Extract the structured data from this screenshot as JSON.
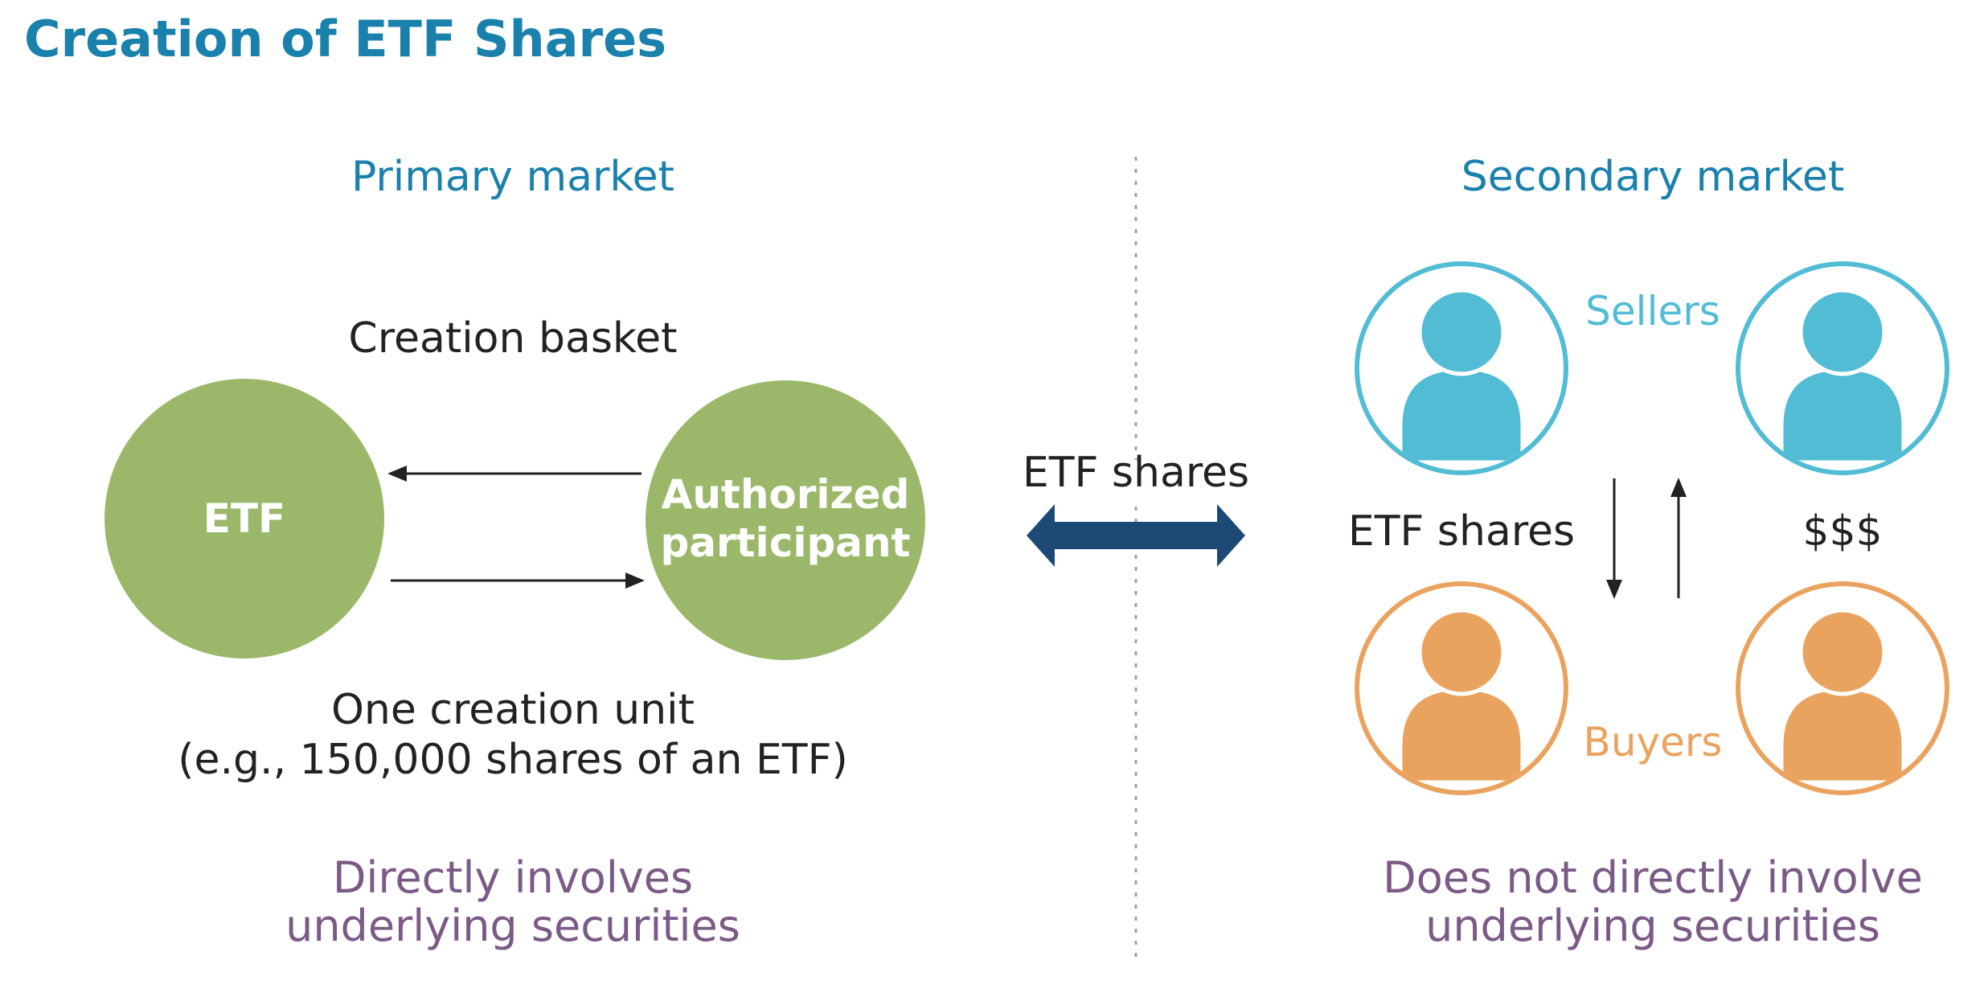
{
  "title": "Creation of ETF Shares",
  "primary": {
    "heading": "Primary market",
    "basket_label": "Creation basket",
    "etf_label": "ETF",
    "ap_label_line1": "Authorized",
    "ap_label_line2": "participant",
    "unit_line1": "One creation unit",
    "unit_line2": "(e.g., 150,000 shares of an ETF)",
    "footer_line1": "Directly involves",
    "footer_line2": "underlying securities"
  },
  "middle": {
    "label": "ETF shares"
  },
  "secondary": {
    "heading": "Secondary market",
    "sellers_label": "Sellers",
    "buyers_label": "Buyers",
    "shares_label": "ETF shares",
    "money_label": "$$$",
    "footer_line1": "Does not directly involve",
    "footer_line2": "underlying securities"
  },
  "colors": {
    "title": "#1a81ac",
    "green": "#9bb86a",
    "navy": "#1c4a74",
    "seller": "#52bcd5",
    "buyer": "#eaa35f",
    "footer": "#7b5a86"
  }
}
